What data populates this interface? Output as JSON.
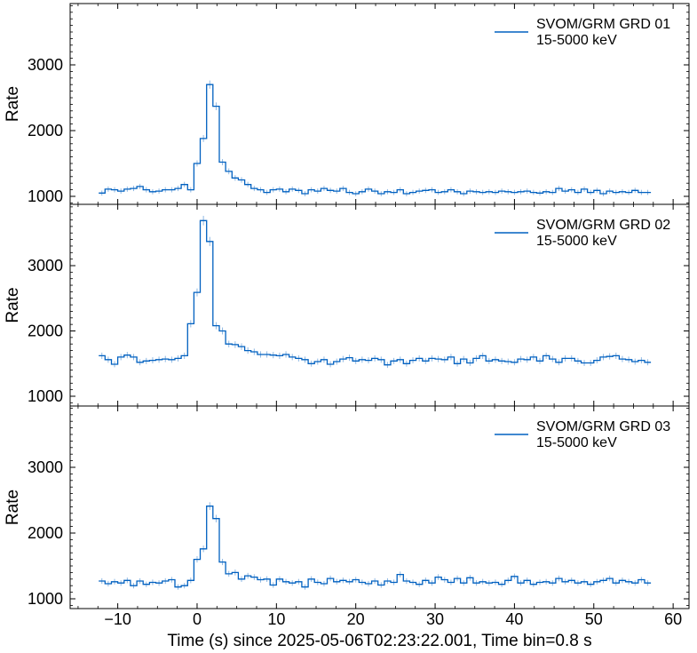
{
  "chart_data": [
    {
      "type": "line",
      "step": true,
      "ylabel": "Rate",
      "legend": {
        "name": "SVOM/GRM GRD 01",
        "subtitle": "15-5000 keV",
        "position": "top-right"
      },
      "xlim": [
        -16,
        62
      ],
      "ylim": [
        850,
        3900
      ],
      "yticks": [
        1000,
        2000,
        3000
      ],
      "series": [
        {
          "name": "SVOM/GRM GRD 01",
          "color": "#0060c0",
          "x": [
            -12.4,
            -11.6,
            -10.8,
            -10.0,
            -9.2,
            -8.4,
            -7.6,
            -6.8,
            -6.0,
            -5.2,
            -4.4,
            -3.6,
            -2.8,
            -2.0,
            -1.2,
            -0.4,
            0.4,
            1.2,
            2.0,
            2.8,
            3.6,
            4.4,
            5.2,
            6.0,
            6.8,
            7.6,
            8.4,
            9.2,
            10.0,
            10.8,
            11.6,
            12.4,
            13.2,
            14.0,
            14.8,
            15.6,
            16.4,
            17.2,
            18.0,
            18.8,
            19.6,
            20.4,
            21.2,
            22.0,
            22.8,
            23.6,
            24.4,
            25.2,
            26.0,
            26.8,
            27.6,
            28.4,
            29.2,
            30.0,
            30.8,
            31.6,
            32.4,
            33.2,
            34.0,
            34.8,
            35.6,
            36.4,
            37.2,
            38.0,
            38.8,
            39.6,
            40.4,
            41.2,
            42.0,
            42.8,
            43.6,
            44.4,
            45.2,
            46.0,
            46.8,
            47.6,
            48.4,
            49.2,
            50.0,
            50.8,
            51.6,
            52.4,
            53.2,
            54.0,
            54.8,
            55.6,
            56.4
          ],
          "y": [
            1050,
            1110,
            1100,
            1080,
            1110,
            1120,
            1150,
            1100,
            1070,
            1080,
            1100,
            1100,
            1120,
            1180,
            1100,
            1500,
            1880,
            2700,
            2370,
            1520,
            1380,
            1280,
            1250,
            1180,
            1120,
            1100,
            1060,
            1100,
            1110,
            1070,
            1110,
            1090,
            1040,
            1100,
            1080,
            1120,
            1090,
            1080,
            1120,
            1060,
            1040,
            1070,
            1110,
            1080,
            1040,
            1070,
            1060,
            1100,
            1040,
            1060,
            1080,
            1090,
            1100,
            1060,
            1070,
            1100,
            1070,
            1040,
            1080,
            1070,
            1060,
            1070,
            1060,
            1080,
            1070,
            1060,
            1070,
            1080,
            1060,
            1050,
            1070,
            1060,
            1120,
            1080,
            1100,
            1060,
            1110,
            1060,
            1090,
            1040,
            1080,
            1060,
            1070,
            1060,
            1090,
            1060,
            1060
          ]
        }
      ]
    },
    {
      "type": "line",
      "step": true,
      "ylabel": "Rate",
      "legend": {
        "name": "SVOM/GRM GRD 02",
        "subtitle": "15-5000 keV",
        "position": "top-right"
      },
      "xlim": [
        -16,
        62
      ],
      "ylim": [
        850,
        3900
      ],
      "yticks": [
        1000,
        2000,
        3000
      ],
      "series": [
        {
          "name": "SVOM/GRM GRD 02",
          "color": "#0060c0",
          "x": [
            -12.4,
            -11.6,
            -10.8,
            -10.0,
            -9.2,
            -8.4,
            -7.6,
            -6.8,
            -6.0,
            -5.2,
            -4.4,
            -3.6,
            -2.8,
            -2.0,
            -1.2,
            -0.4,
            0.4,
            1.2,
            2.0,
            2.8,
            3.6,
            4.4,
            5.2,
            6.0,
            6.8,
            7.6,
            8.4,
            9.2,
            10.0,
            10.8,
            11.6,
            12.4,
            13.2,
            14.0,
            14.8,
            15.6,
            16.4,
            17.2,
            18.0,
            18.8,
            19.6,
            20.4,
            21.2,
            22.0,
            22.8,
            23.6,
            24.4,
            25.2,
            26.0,
            26.8,
            27.6,
            28.4,
            29.2,
            30.0,
            30.8,
            31.6,
            32.4,
            33.2,
            34.0,
            34.8,
            35.6,
            36.4,
            37.2,
            38.0,
            38.8,
            39.6,
            40.4,
            41.2,
            42.0,
            42.8,
            43.6,
            44.4,
            45.2,
            46.0,
            46.8,
            47.6,
            48.4,
            49.2,
            50.0,
            50.8,
            51.6,
            52.4,
            53.2,
            54.0,
            54.8,
            55.6,
            56.4
          ],
          "y": [
            1620,
            1560,
            1490,
            1600,
            1630,
            1600,
            1520,
            1540,
            1550,
            1560,
            1570,
            1560,
            1580,
            1620,
            2110,
            2590,
            3690,
            3370,
            2080,
            2000,
            1800,
            1790,
            1760,
            1700,
            1680,
            1640,
            1640,
            1630,
            1620,
            1640,
            1600,
            1580,
            1560,
            1500,
            1530,
            1560,
            1490,
            1530,
            1570,
            1590,
            1540,
            1560,
            1550,
            1580,
            1560,
            1480,
            1540,
            1560,
            1500,
            1550,
            1580,
            1540,
            1580,
            1570,
            1560,
            1600,
            1500,
            1570,
            1510,
            1580,
            1620,
            1540,
            1560,
            1540,
            1530,
            1520,
            1570,
            1560,
            1600,
            1540,
            1620,
            1570,
            1520,
            1580,
            1580,
            1540,
            1510,
            1510,
            1550,
            1600,
            1610,
            1620,
            1570,
            1560,
            1530,
            1550,
            1520
          ]
        }
      ]
    },
    {
      "type": "line",
      "step": true,
      "ylabel": "Rate",
      "legend": {
        "name": "SVOM/GRM GRD 03",
        "subtitle": "15-5000 keV",
        "position": "top-right"
      },
      "xlim": [
        -16,
        62
      ],
      "ylim": [
        850,
        3900
      ],
      "yticks": [
        1000,
        2000,
        3000
      ],
      "series": [
        {
          "name": "SVOM/GRM GRD 03",
          "color": "#0060c0",
          "x": [
            -12.4,
            -11.6,
            -10.8,
            -10.0,
            -9.2,
            -8.4,
            -7.6,
            -6.8,
            -6.0,
            -5.2,
            -4.4,
            -3.6,
            -2.8,
            -2.0,
            -1.2,
            -0.4,
            0.4,
            1.2,
            2.0,
            2.8,
            3.6,
            4.4,
            5.2,
            6.0,
            6.8,
            7.6,
            8.4,
            9.2,
            10.0,
            10.8,
            11.6,
            12.4,
            13.2,
            14.0,
            14.8,
            15.6,
            16.4,
            17.2,
            18.0,
            18.8,
            19.6,
            20.4,
            21.2,
            22.0,
            22.8,
            23.6,
            24.4,
            25.2,
            26.0,
            26.8,
            27.6,
            28.4,
            29.2,
            30.0,
            30.8,
            31.6,
            32.4,
            33.2,
            34.0,
            34.8,
            35.6,
            36.4,
            37.2,
            38.0,
            38.8,
            39.6,
            40.4,
            41.2,
            42.0,
            42.8,
            43.6,
            44.4,
            45.2,
            46.0,
            46.8,
            47.6,
            48.4,
            49.2,
            50.0,
            50.8,
            51.6,
            52.4,
            53.2,
            54.0,
            54.8,
            55.6,
            56.4
          ],
          "y": [
            1270,
            1230,
            1260,
            1240,
            1280,
            1200,
            1270,
            1220,
            1250,
            1240,
            1270,
            1290,
            1180,
            1200,
            1280,
            1600,
            1760,
            2410,
            2220,
            1560,
            1380,
            1400,
            1300,
            1350,
            1330,
            1290,
            1300,
            1210,
            1300,
            1260,
            1240,
            1260,
            1180,
            1300,
            1250,
            1230,
            1310,
            1260,
            1280,
            1260,
            1290,
            1250,
            1230,
            1270,
            1210,
            1270,
            1250,
            1370,
            1270,
            1250,
            1220,
            1280,
            1240,
            1330,
            1290,
            1250,
            1310,
            1240,
            1320,
            1240,
            1260,
            1240,
            1250,
            1220,
            1280,
            1340,
            1240,
            1280,
            1220,
            1250,
            1260,
            1240,
            1310,
            1260,
            1280,
            1240,
            1260,
            1220,
            1260,
            1280,
            1310,
            1240,
            1280,
            1260,
            1240,
            1290,
            1240
          ]
        }
      ]
    }
  ],
  "x_axis": {
    "label": "Time (s) since 2025-05-06T02:23:22.001, Time bin=0.8 s",
    "ticks": [
      -10,
      0,
      10,
      20,
      30,
      40,
      50,
      60
    ]
  }
}
